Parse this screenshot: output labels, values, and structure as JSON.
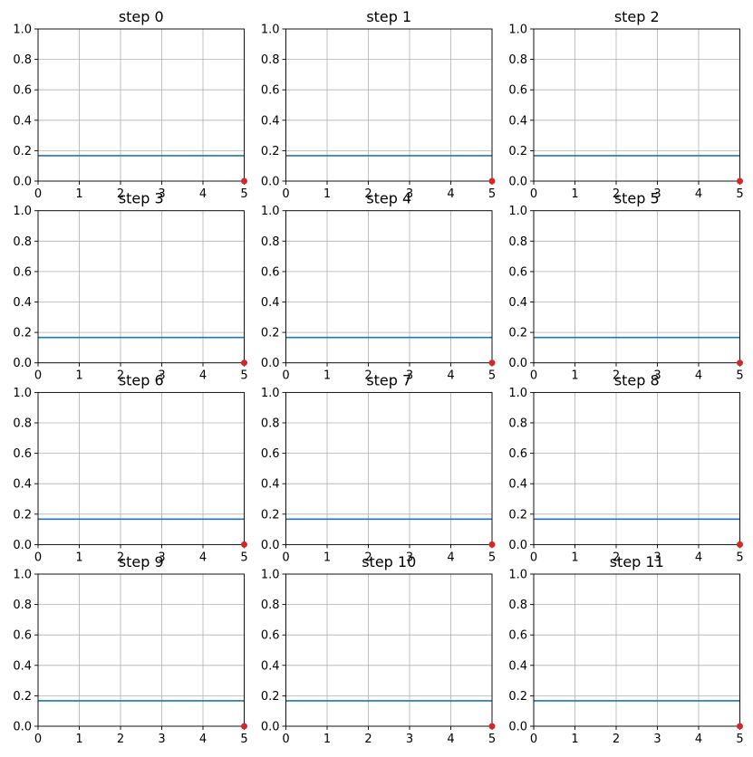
{
  "chart_data": {
    "type": "line",
    "grid": true,
    "layout": {
      "rows": 4,
      "cols": 3
    },
    "panels": [
      {
        "title": "step 0",
        "line_y": 0.167,
        "marker": {
          "x": 5,
          "y": 0
        }
      },
      {
        "title": "step 1",
        "line_y": 0.167,
        "marker": {
          "x": 5,
          "y": 0
        }
      },
      {
        "title": "step 2",
        "line_y": 0.167,
        "marker": {
          "x": 5,
          "y": 0
        }
      },
      {
        "title": "step 3",
        "line_y": 0.167,
        "marker": {
          "x": 5,
          "y": 0
        }
      },
      {
        "title": "step 4",
        "line_y": 0.167,
        "marker": {
          "x": 5,
          "y": 0
        }
      },
      {
        "title": "step 5",
        "line_y": 0.167,
        "marker": {
          "x": 5,
          "y": 0
        }
      },
      {
        "title": "step 6",
        "line_y": 0.167,
        "marker": {
          "x": 5,
          "y": 0
        }
      },
      {
        "title": "step 7",
        "line_y": 0.167,
        "marker": {
          "x": 5,
          "y": 0
        }
      },
      {
        "title": "step 8",
        "line_y": 0.167,
        "marker": {
          "x": 5,
          "y": 0
        }
      },
      {
        "title": "step 9",
        "line_y": 0.167,
        "marker": {
          "x": 5,
          "y": 0
        }
      },
      {
        "title": "step 10",
        "line_y": 0.167,
        "marker": {
          "x": 5,
          "y": 0
        }
      },
      {
        "title": "step 11",
        "line_y": 0.167,
        "marker": {
          "x": 5,
          "y": 0
        }
      }
    ],
    "xlim": [
      0,
      5
    ],
    "ylim": [
      0,
      1
    ],
    "xticks": [
      0,
      1,
      2,
      3,
      4,
      5
    ],
    "yticks": [
      0.0,
      0.2,
      0.4,
      0.6,
      0.8,
      1.0
    ],
    "xtick_labels": [
      "0",
      "1",
      "2",
      "3",
      "4",
      "5"
    ],
    "ytick_labels": [
      "0.0",
      "0.2",
      "0.4",
      "0.6",
      "0.8",
      "1.0"
    ],
    "colors": {
      "line": "#1f77b4",
      "marker": "#d62728",
      "grid": "#b0b0b0"
    }
  }
}
